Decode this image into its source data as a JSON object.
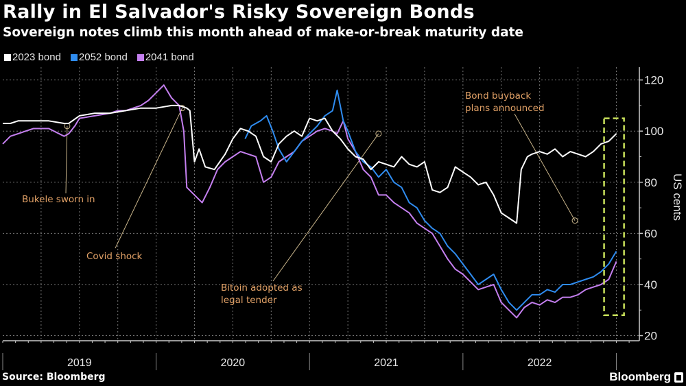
{
  "header": {
    "title": "Rally in El Salvador's Risky Sovereign Bonds",
    "subtitle": "Sovereign notes climb this month ahead of make-or-break maturity date"
  },
  "legend": [
    {
      "label": "2023 bond",
      "color": "#ffffff"
    },
    {
      "label": "2052 bond",
      "color": "#2f8cf0"
    },
    {
      "label": "2041 bond",
      "color": "#c47fef"
    }
  ],
  "footer": {
    "source": "Source: Bloomberg",
    "brand": "Bloomberg"
  },
  "chart_data": {
    "type": "line",
    "title": "Rally in El Salvador's Risky Sovereign Bonds",
    "subtitle": "Sovereign notes climb this month ahead of make-or-break maturity date",
    "xlabel": "",
    "ylabel": "US cents",
    "xlim": [
      2019.0,
      2023.15
    ],
    "ylim": [
      18,
      125
    ],
    "yticks": [
      20,
      40,
      60,
      80,
      100,
      120
    ],
    "ytick_labels": [
      "20",
      "40",
      "60",
      "80",
      "100",
      "120"
    ],
    "xtick_labels": [
      {
        "label": "2019",
        "x": 2019.5
      },
      {
        "label": "2020",
        "x": 2020.5
      },
      {
        "label": "2021",
        "x": 2021.5
      },
      {
        "label": "2022",
        "x": 2022.5
      }
    ],
    "x_year_boundaries": [
      2019.0,
      2020.0,
      2021.0,
      2022.0,
      2023.0
    ],
    "grid": true,
    "legend_position": "top-left",
    "series": [
      {
        "name": "2023 bond",
        "color": "#ffffff",
        "x": [
          2019.0,
          2019.05,
          2019.1,
          2019.2,
          2019.3,
          2019.4,
          2019.43,
          2019.5,
          2019.6,
          2019.7,
          2019.8,
          2019.9,
          2020.0,
          2020.1,
          2020.15,
          2020.2,
          2020.22,
          2020.25,
          2020.28,
          2020.32,
          2020.38,
          2020.45,
          2020.5,
          2020.55,
          2020.6,
          2020.65,
          2020.7,
          2020.75,
          2020.8,
          2020.85,
          2020.9,
          2020.95,
          2021.0,
          2021.05,
          2021.1,
          2021.15,
          2021.2,
          2021.25,
          2021.3,
          2021.35,
          2021.4,
          2021.45,
          2021.5,
          2021.55,
          2021.6,
          2021.65,
          2021.7,
          2021.75,
          2021.8,
          2021.85,
          2021.9,
          2021.95,
          2022.0,
          2022.05,
          2022.1,
          2022.15,
          2022.2,
          2022.25,
          2022.3,
          2022.35,
          2022.38,
          2022.42,
          2022.45,
          2022.5,
          2022.55,
          2022.6,
          2022.65,
          2022.7,
          2022.75,
          2022.8,
          2022.85,
          2022.9,
          2022.95,
          2023.0
        ],
        "values": [
          103,
          103,
          104,
          104,
          104,
          103,
          103,
          106,
          107,
          107,
          108,
          109,
          109,
          110,
          110,
          109,
          108,
          88,
          93,
          86,
          85,
          91,
          97,
          101,
          100,
          98,
          90,
          88,
          95,
          98,
          100,
          98,
          105,
          104,
          105,
          100,
          97,
          93,
          90,
          89,
          85,
          88,
          87,
          86,
          90,
          87,
          86,
          88,
          77,
          76,
          78,
          86,
          84,
          82,
          79,
          80,
          75,
          68,
          66,
          64,
          85,
          90,
          91,
          92,
          91,
          93,
          90,
          92,
          91,
          90,
          92,
          95,
          96,
          99
        ]
      },
      {
        "name": "2052 bond",
        "color": "#2f8cf0",
        "x": [
          2020.58,
          2020.62,
          2020.68,
          2020.72,
          2020.76,
          2020.8,
          2020.85,
          2020.9,
          2020.95,
          2021.0,
          2021.05,
          2021.1,
          2021.15,
          2021.18,
          2021.22,
          2021.25,
          2021.3,
          2021.35,
          2021.4,
          2021.45,
          2021.5,
          2021.55,
          2021.6,
          2021.65,
          2021.7,
          2021.75,
          2021.8,
          2021.85,
          2021.9,
          2021.95,
          2022.0,
          2022.05,
          2022.1,
          2022.15,
          2022.2,
          2022.25,
          2022.3,
          2022.35,
          2022.4,
          2022.45,
          2022.5,
          2022.55,
          2022.6,
          2022.65,
          2022.7,
          2022.75,
          2022.8,
          2022.85,
          2022.9,
          2022.95,
          2023.0
        ],
        "values": [
          97,
          102,
          104,
          106,
          100,
          93,
          88,
          92,
          96,
          99,
          102,
          106,
          108,
          116,
          104,
          100,
          92,
          88,
          86,
          82,
          85,
          80,
          78,
          72,
          70,
          65,
          62,
          60,
          55,
          52,
          48,
          44,
          40,
          42,
          44,
          38,
          33,
          30,
          33,
          36,
          36,
          38,
          37,
          40,
          40,
          41,
          42,
          43,
          45,
          48,
          53
        ]
      },
      {
        "name": "2041 bond",
        "color": "#c47fef",
        "x": [
          2019.0,
          2019.05,
          2019.1,
          2019.15,
          2019.2,
          2019.3,
          2019.4,
          2019.43,
          2019.47,
          2019.5,
          2019.6,
          2019.7,
          2019.75,
          2019.8,
          2019.9,
          2019.95,
          2020.0,
          2020.05,
          2020.1,
          2020.15,
          2020.18,
          2020.2,
          2020.25,
          2020.3,
          2020.35,
          2020.4,
          2020.45,
          2020.5,
          2020.55,
          2020.6,
          2020.65,
          2020.7,
          2020.75,
          2020.8,
          2020.85,
          2020.9,
          2020.95,
          2021.0,
          2021.05,
          2021.1,
          2021.15,
          2021.18,
          2021.22,
          2021.25,
          2021.3,
          2021.35,
          2021.4,
          2021.45,
          2021.5,
          2021.55,
          2021.6,
          2021.65,
          2021.7,
          2021.75,
          2021.8,
          2021.85,
          2021.9,
          2021.95,
          2022.0,
          2022.05,
          2022.1,
          2022.15,
          2022.2,
          2022.25,
          2022.3,
          2022.35,
          2022.4,
          2022.45,
          2022.5,
          2022.55,
          2022.6,
          2022.65,
          2022.7,
          2022.75,
          2022.8,
          2022.85,
          2022.9,
          2022.95,
          2023.0
        ],
        "values": [
          95,
          98,
          99,
          100,
          101,
          101,
          98,
          99,
          102,
          105,
          106,
          107,
          108,
          108,
          110,
          112,
          115,
          118,
          113,
          110,
          100,
          78,
          75,
          72,
          78,
          85,
          88,
          90,
          92,
          91,
          90,
          80,
          82,
          88,
          90,
          92,
          96,
          98,
          100,
          101,
          100,
          99,
          104,
          97,
          92,
          85,
          82,
          75,
          75,
          72,
          70,
          68,
          64,
          62,
          60,
          55,
          50,
          46,
          44,
          41,
          38,
          39,
          40,
          33,
          30,
          27,
          31,
          33,
          32,
          34,
          33,
          35,
          35,
          36,
          38,
          39,
          40,
          42,
          49
        ]
      }
    ],
    "annotations": [
      {
        "text": "Bukele sworn in",
        "x": 2019.42,
        "y": 102
      },
      {
        "text": "Covid shock",
        "x": 2020.17,
        "y": 109
      },
      {
        "text": "Bitoin adopted as legal tender",
        "x": 2021.45,
        "y": 99
      },
      {
        "text": "Bond buyback plans announced",
        "x": 2022.73,
        "y": 65
      }
    ],
    "highlight_box": {
      "x_range": [
        2022.92,
        2023.05
      ],
      "y_range": [
        28,
        105
      ],
      "color": "#c8e05a",
      "style": "dashed"
    }
  }
}
